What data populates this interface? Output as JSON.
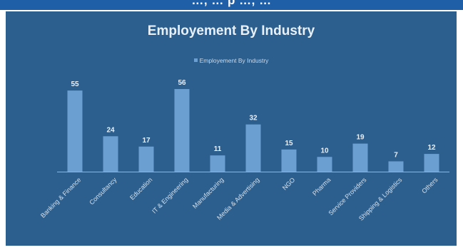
{
  "page": {
    "banner_text": "…, … p …, …"
  },
  "chart_data": {
    "type": "bar",
    "title": "Employement By Industry",
    "series": [
      {
        "name": "Employement By Industry",
        "values": [
          55,
          24,
          17,
          56,
          11,
          32,
          15,
          10,
          19,
          7,
          12
        ]
      }
    ],
    "categories": [
      "Banking & Finance",
      "Consultancy",
      "Education",
      "IT & Engineering",
      "Manufacturing",
      "Media & Advertising",
      "NGO",
      "Pharma",
      "Service Providers",
      "Shipping & Logistics",
      "Others"
    ],
    "ylim": [
      0,
      56
    ],
    "grid": false,
    "legend_position": "top",
    "colors": {
      "background": "#2c5f8e",
      "bar": "#6b9fd2",
      "text": "#e8f0fa",
      "banner": "#1f5fa8"
    }
  }
}
